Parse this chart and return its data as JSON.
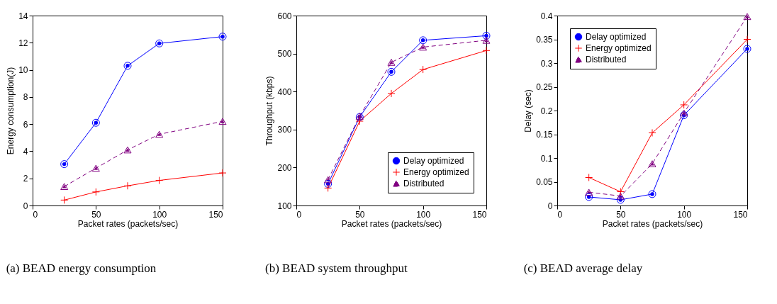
{
  "chart_data": [
    {
      "type": "line",
      "title": "(a) BEAD energy consumption",
      "xlabel": "Packet rates (packets/sec)",
      "ylabel": "Energy consumption(J)",
      "x": [
        25,
        50,
        75,
        100,
        150
      ],
      "xlim": [
        0,
        150
      ],
      "xticks": [
        0,
        50,
        100,
        150
      ],
      "ylim": [
        0,
        14
      ],
      "yticks": [
        0,
        2,
        4,
        6,
        8,
        10,
        12,
        14
      ],
      "grid": false,
      "legend": false,
      "series": [
        {
          "color": "#0000ff",
          "marker": "circle",
          "line_style": "solid",
          "values": [
            3.05,
            6.1,
            10.3,
            11.95,
            12.45
          ]
        },
        {
          "color": "#ff0000",
          "marker": "cross",
          "line_style": "solid",
          "values": [
            0.4,
            1.0,
            1.45,
            1.85,
            2.4
          ]
        },
        {
          "color": "#800080",
          "marker": "triangle",
          "line_style": "dashed",
          "values": [
            1.4,
            2.75,
            4.1,
            5.25,
            6.2
          ]
        }
      ]
    },
    {
      "type": "line",
      "title": "(b) BEAD system throughput",
      "xlabel": "Packet rates (packets/sec)",
      "ylabel": "Throughput (kbps)",
      "x": [
        25,
        50,
        75,
        100,
        150
      ],
      "xlim": [
        0,
        150
      ],
      "xticks": [
        0,
        50,
        100,
        150
      ],
      "ylim": [
        100,
        600
      ],
      "yticks": [
        100,
        200,
        300,
        400,
        500,
        600
      ],
      "grid": false,
      "legend": "bottom right",
      "series": [
        {
          "name": "Delay optimized",
          "color": "#0000ff",
          "marker": "circle",
          "line_style": "solid",
          "values": [
            157,
            333,
            452,
            535,
            547
          ]
        },
        {
          "name": "Energy optimized",
          "color": "#ff0000",
          "marker": "cross",
          "line_style": "solid",
          "values": [
            146,
            322,
            395,
            458,
            508
          ]
        },
        {
          "name": "Distributed",
          "color": "#800080",
          "marker": "triangle",
          "line_style": "dashed",
          "values": [
            168,
            335,
            477,
            517,
            535
          ]
        }
      ]
    },
    {
      "type": "line",
      "title": "(c) BEAD average delay",
      "xlabel": "Packet rates (packets/sec)",
      "ylabel": "Delay (sec)",
      "x": [
        25,
        50,
        75,
        100,
        150
      ],
      "xlim": [
        0,
        150
      ],
      "xticks": [
        0,
        50,
        100,
        150
      ],
      "ylim": [
        0,
        0.4
      ],
      "yticks": [
        0,
        0.05,
        0.1,
        0.15,
        0.2,
        0.25,
        0.3,
        0.35,
        0.4
      ],
      "grid": false,
      "legend": "top left",
      "series": [
        {
          "name": "Delay optimized",
          "color": "#0000ff",
          "marker": "circle",
          "line_style": "solid",
          "values": [
            0.018,
            0.012,
            0.024,
            0.19,
            0.33
          ]
        },
        {
          "name": "Energy optimized",
          "color": "#ff0000",
          "marker": "cross",
          "line_style": "solid",
          "values": [
            0.059,
            0.029,
            0.153,
            0.212,
            0.35
          ]
        },
        {
          "name": "Distributed",
          "color": "#800080",
          "marker": "triangle",
          "line_style": "dashed",
          "values": [
            0.028,
            0.02,
            0.088,
            0.195,
            0.398
          ]
        }
      ]
    }
  ]
}
